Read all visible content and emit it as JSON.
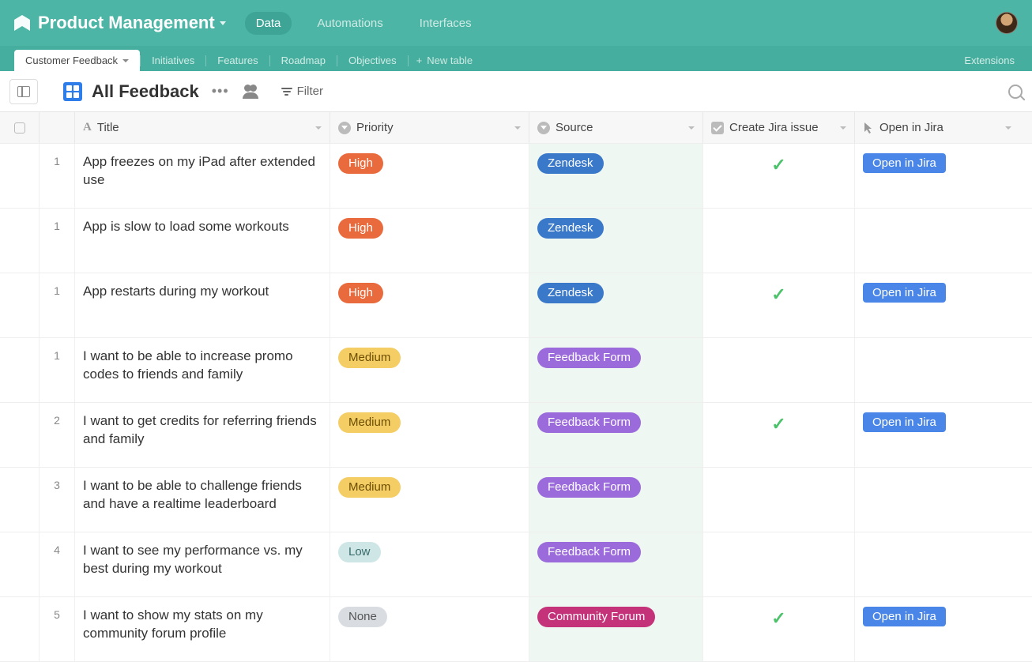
{
  "colors": {
    "topbar": "#4cb5a5",
    "tabbar": "#46ae9e",
    "top_nav_active_bg": "#3ea596",
    "grid_icon": "#2e7de9",
    "source_col_bg": "#eef7f1",
    "checkmark": "#4cc26b",
    "jira_btn": "#4a86e8"
  },
  "header": {
    "base_title": "Product Management",
    "top_nav": [
      {
        "label": "Data",
        "active": true
      },
      {
        "label": "Automations",
        "active": false
      },
      {
        "label": "Interfaces",
        "active": false
      }
    ]
  },
  "tabs": {
    "items": [
      {
        "label": "Customer Feedback",
        "active": true,
        "has_chevron": true
      },
      {
        "label": "Initiatives",
        "active": false
      },
      {
        "label": "Features",
        "active": false
      },
      {
        "label": "Roadmap",
        "active": false
      },
      {
        "label": "Objectives",
        "active": false
      }
    ],
    "new_table_label": "New table",
    "extensions_label": "Extensions"
  },
  "view": {
    "name": "All Feedback",
    "filter_label": "Filter"
  },
  "columns": {
    "title": "Title",
    "priority": "Priority",
    "source": "Source",
    "create_jira": "Create Jira issue",
    "open_jira": "Open in Jira"
  },
  "priority_pills": {
    "High": {
      "bg": "#e96a3c",
      "fg": "#ffffff"
    },
    "Medium": {
      "bg": "#f5cd65",
      "fg": "#6b4e00"
    },
    "Low": {
      "bg": "#cfe6e6",
      "fg": "#3a6b6b"
    },
    "None": {
      "bg": "#d9dde2",
      "fg": "#555"
    }
  },
  "source_pills": {
    "Zendesk": {
      "bg": "#3a78c9",
      "fg": "#ffffff"
    },
    "Feedback Form": {
      "bg": "#9b6bdc",
      "fg": "#ffffff"
    },
    "Community Forum": {
      "bg": "#c4337a",
      "fg": "#ffffff"
    }
  },
  "open_in_jira_label": "Open in Jira",
  "rows": [
    {
      "num": "1",
      "title": "App freezes on my iPad after extended use",
      "priority": "High",
      "source": "Zendesk",
      "create_jira": true,
      "open_jira": true
    },
    {
      "num": "1",
      "title": "App is slow to load some workouts",
      "priority": "High",
      "source": "Zendesk",
      "create_jira": false,
      "open_jira": false
    },
    {
      "num": "1",
      "title": "App restarts during my workout",
      "priority": "High",
      "source": "Zendesk",
      "create_jira": true,
      "open_jira": true
    },
    {
      "num": "1",
      "title": "I want to be able to increase promo codes to friends and family",
      "priority": "Medium",
      "source": "Feedback Form",
      "create_jira": false,
      "open_jira": false
    },
    {
      "num": "2",
      "title": "I want to get credits for referring friends and family",
      "priority": "Medium",
      "source": "Feedback Form",
      "create_jira": true,
      "open_jira": true
    },
    {
      "num": "3",
      "title": "I want to be able to challenge friends and have a realtime leaderboard",
      "priority": "Medium",
      "source": "Feedback Form",
      "create_jira": false,
      "open_jira": false
    },
    {
      "num": "4",
      "title": "I want to see my performance vs. my best during my workout",
      "priority": "Low",
      "source": "Feedback Form",
      "create_jira": false,
      "open_jira": false
    },
    {
      "num": "5",
      "title": "I want to show my stats on my community forum profile",
      "priority": "None",
      "source": "Community Forum",
      "create_jira": true,
      "open_jira": true
    }
  ]
}
